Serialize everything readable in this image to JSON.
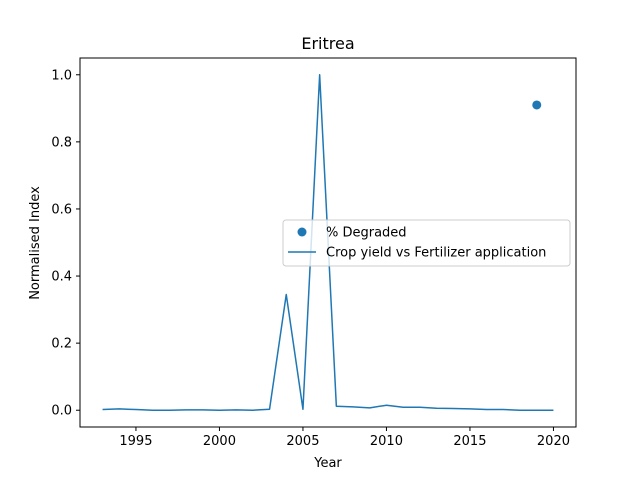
{
  "chart_data": {
    "type": "line",
    "title": "Eritrea",
    "xlabel": "Year",
    "ylabel": "Normalised Index",
    "xlim": [
      1991.65,
      2021.35
    ],
    "ylim": [
      -0.05,
      1.05
    ],
    "xticks": [
      1995,
      2000,
      2005,
      2010,
      2015,
      2020
    ],
    "yticks": [
      0.0,
      0.2,
      0.4,
      0.6,
      0.8,
      1.0
    ],
    "ytick_labels": [
      "0.0",
      "0.2",
      "0.4",
      "0.6",
      "0.8",
      "1.0"
    ],
    "grid": false,
    "legend_position": "center-right",
    "series": [
      {
        "name": "Crop yield vs Fertilizer application",
        "kind": "line",
        "color": "#1f77b4",
        "x": [
          1993,
          1994,
          1995,
          1996,
          1997,
          1998,
          1999,
          2000,
          2001,
          2002,
          2003,
          2004,
          2005,
          2006,
          2007,
          2008,
          2009,
          2010,
          2011,
          2012,
          2013,
          2014,
          2015,
          2016,
          2017,
          2018,
          2019,
          2020
        ],
        "y": [
          0.002,
          0.004,
          0.002,
          0.0,
          0.0,
          0.001,
          0.001,
          0.0,
          0.001,
          0.0,
          0.003,
          0.345,
          0.003,
          1.0,
          0.012,
          0.01,
          0.007,
          0.015,
          0.009,
          0.009,
          0.006,
          0.005,
          0.004,
          0.002,
          0.002,
          0.0,
          0.0,
          0.0
        ]
      },
      {
        "name": "% Degraded",
        "kind": "scatter",
        "color": "#1f77b4",
        "x": [
          2019
        ],
        "y": [
          0.91
        ]
      }
    ]
  }
}
